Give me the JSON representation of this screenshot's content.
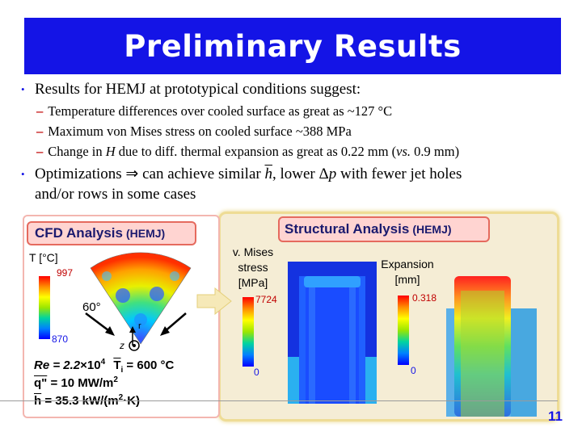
{
  "title": "Preliminary Results",
  "bullets": {
    "b1": "Results for HEMJ at prototypical conditions suggest:",
    "sub1": "Temperature differences over cooled surface as great as ~127 °C",
    "sub2": "Maximum von Mises stress on cooled surface ~388 MPa",
    "sub3_a": "Change in ",
    "sub3_h": "H",
    "sub3_b": " due to diff. thermal expansion as great as 0.22 mm (",
    "sub3_vs": "vs.",
    "sub3_c": " 0.9 mm)",
    "b2_a": "Optimizations ",
    "b2_arrow": "⇒",
    "b2_b": " can achieve similar ",
    "b2_h": "h",
    "b2_c": ", lower ",
    "b2_delta": "Δ",
    "b2_p": "p",
    "b2_d": " with fewer jet holes",
    "b2_line2": "and/or rows in some cases"
  },
  "cfd": {
    "title": "CFD Analysis",
    "title_suffix": "(HEMJ)",
    "temp_label": "T [°C]",
    "temp_max": "997",
    "temp_min": "870",
    "angle": "60°",
    "axis_r": "r",
    "axis_z": "z",
    "re_a": "Re = 2.2",
    "re_x": "×",
    "re_b": "10",
    "re_exp": "4",
    "ti_label": "T",
    "ti_sub": "i",
    "ti_value": " = 600 °C",
    "q_label": "q\"",
    "q_value": " = 10 MW/m",
    "q_exp": "2",
    "h_label": "h",
    "h_value": " = 35.3 kW/(m",
    "h_exp": "2",
    "h_tail": "·K)"
  },
  "structural": {
    "title": "Structural Analysis",
    "title_suffix": "(HEMJ)",
    "vm_label_1": "v. Mises",
    "vm_label_2": "stress",
    "vm_label_3": "[MPa]",
    "vm_max": "7724",
    "vm_min": "0",
    "ex_label_1": "Expansion",
    "ex_label_2": "[mm]",
    "ex_max": "0.318",
    "ex_min": "0"
  },
  "page_number": "11",
  "colors": {
    "title_bar": "#1414e6",
    "dash": "#c00000",
    "tag_fill": "#ffd4d1",
    "tag_border": "#e56a5e",
    "struct_panel": "#f5edd5"
  }
}
